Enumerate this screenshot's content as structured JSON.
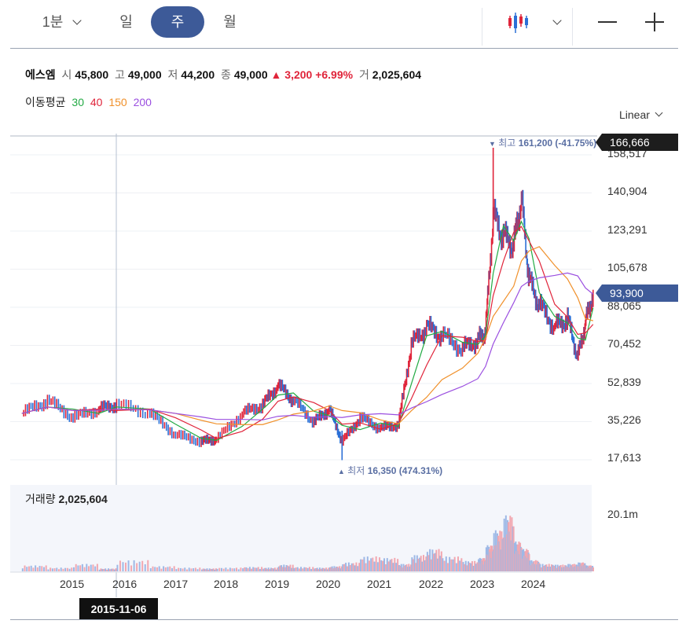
{
  "toolbar": {
    "timeframes": [
      {
        "label": "1분",
        "active": false
      },
      {
        "label": "일",
        "active": false
      },
      {
        "label": "주",
        "active": true
      },
      {
        "label": "월",
        "active": false
      }
    ],
    "chart_type_icon": "candlestick-icon",
    "zoom_out_icon": "minus-icon",
    "zoom_in_icon": "plus-icon"
  },
  "stock": {
    "name": "에스엠",
    "open_label": "시",
    "open": "45,800",
    "high_label": "고",
    "high": "49,000",
    "low_label": "저",
    "low": "44,200",
    "close_label": "종",
    "close": "49,000",
    "change": "▲ 3,200 +6.99%",
    "volume_label": "거",
    "volume": "2,025,604"
  },
  "moving_average": {
    "label": "이동평균",
    "periods": [
      {
        "period": "30",
        "color": "#22aa44"
      },
      {
        "period": "40",
        "color": "#e0243a"
      },
      {
        "period": "150",
        "color": "#f0902a"
      },
      {
        "period": "200",
        "color": "#9b4fe0"
      }
    ]
  },
  "scale_mode": "Linear",
  "price_axis": {
    "ticks": [
      "158,517",
      "140,904",
      "123,291",
      "105,678",
      "88,065",
      "70,452",
      "52,839",
      "35,226",
      "17,613"
    ],
    "crosshair_value": "166,666",
    "last_price": "93,900"
  },
  "annotations": {
    "high": {
      "marker": "▼",
      "label": "최고",
      "value": "161,200 (-41.75%)"
    },
    "low": {
      "marker": "▲",
      "label": "최저",
      "value": "16,350 (474.31%)"
    }
  },
  "volume_panel": {
    "label": "거래량",
    "value": "2,025,604",
    "axis_tick": "20.1m"
  },
  "time_axis": {
    "ticks": [
      "2015",
      "2016",
      "2017",
      "2018",
      "2019",
      "2020",
      "2021",
      "2022",
      "2023",
      "2024"
    ],
    "crosshair_date": "2015-11-06"
  },
  "chart_data": {
    "type": "line",
    "ylim": [
      17613,
      166666
    ],
    "x": [
      2014.0,
      2014.5,
      2015.0,
      2015.5,
      2015.85,
      2016.5,
      2017.0,
      2017.5,
      2017.8,
      2018.3,
      2018.7,
      2019.0,
      2019.3,
      2019.7,
      2020.0,
      2020.25,
      2020.6,
      2021.0,
      2021.35,
      2021.6,
      2021.9,
      2022.2,
      2022.6,
      2022.9,
      2023.05,
      2023.2,
      2023.4,
      2023.6,
      2023.75,
      2023.9,
      2024.1,
      2024.4,
      2024.65,
      2024.85,
      2025.0,
      2025.15
    ],
    "series": [
      {
        "values": [
          38000,
          44000,
          36000,
          40000,
          42000,
          38000,
          28000,
          25000,
          26000,
          38000,
          42000,
          51000,
          44000,
          34000,
          40000,
          25000,
          36000,
          31000,
          33000,
          70000,
          78000,
          74000,
          68000,
          72000,
          76000,
          130000,
          120000,
          116000,
          138000,
          100000,
          88000,
          78000,
          82000,
          64000,
          80000,
          93900
        ]
      }
    ],
    "volume": {
      "axis_tick": "20.1m",
      "values": [
        0.08,
        0.05,
        0.1,
        0.04,
        0.15,
        0.07,
        0.05,
        0.04,
        0.05,
        0.06,
        0.05,
        0.09,
        0.06,
        0.05,
        0.07,
        0.12,
        0.2,
        0.18,
        0.1,
        0.22,
        0.3,
        0.2,
        0.14,
        0.18,
        0.35,
        0.55,
        0.75,
        0.4,
        0.3,
        0.15,
        0.1,
        0.09,
        0.1,
        0.12,
        0.08,
        0.1
      ]
    }
  }
}
